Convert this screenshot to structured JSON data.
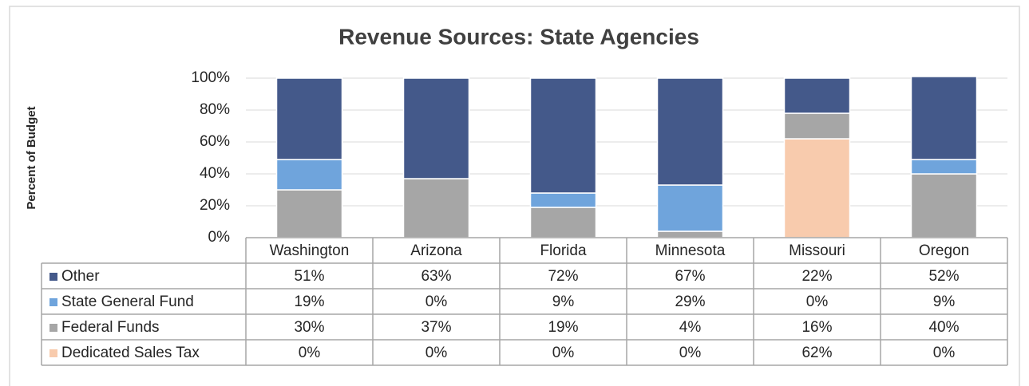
{
  "chart_data": {
    "type": "stacked_bar",
    "title": "Revenue Sources:  State Agencies",
    "y_label": "Percent of Budget",
    "categories": [
      "Washington",
      "Arizona",
      "Florida",
      "Minnesota",
      "Missouri",
      "Oregon"
    ],
    "series": [
      {
        "name": "Other",
        "color": "#44598a",
        "values": [
          51,
          63,
          72,
          67,
          22,
          52
        ],
        "value_labels": [
          "51%",
          "63%",
          "72%",
          "67%",
          "22%",
          "52%"
        ]
      },
      {
        "name": "State General Fund",
        "color": "#6fa4dc",
        "values": [
          19,
          0,
          9,
          29,
          0,
          9
        ],
        "value_labels": [
          "19%",
          "0%",
          "9%",
          "29%",
          "0%",
          "9%"
        ]
      },
      {
        "name": "Federal Funds",
        "color": "#a6a6a6",
        "values": [
          30,
          37,
          19,
          4,
          16,
          40
        ],
        "value_labels": [
          "30%",
          "37%",
          "19%",
          "4%",
          "16%",
          "40%"
        ]
      },
      {
        "name": "Dedicated Sales Tax",
        "color": "#f8cbad",
        "values": [
          0,
          0,
          0,
          0,
          62,
          0
        ],
        "value_labels": [
          "0%",
          "0%",
          "0%",
          "0%",
          "62%",
          "0%"
        ]
      }
    ],
    "ylim": [
      0,
      100
    ],
    "yticks": [
      {
        "value": 0,
        "label": "0%"
      },
      {
        "value": 20,
        "label": "20%"
      },
      {
        "value": 40,
        "label": "40%"
      },
      {
        "value": 60,
        "label": "60%"
      },
      {
        "value": 80,
        "label": "80%"
      },
      {
        "value": 100,
        "label": "100%"
      }
    ],
    "grid": true
  }
}
